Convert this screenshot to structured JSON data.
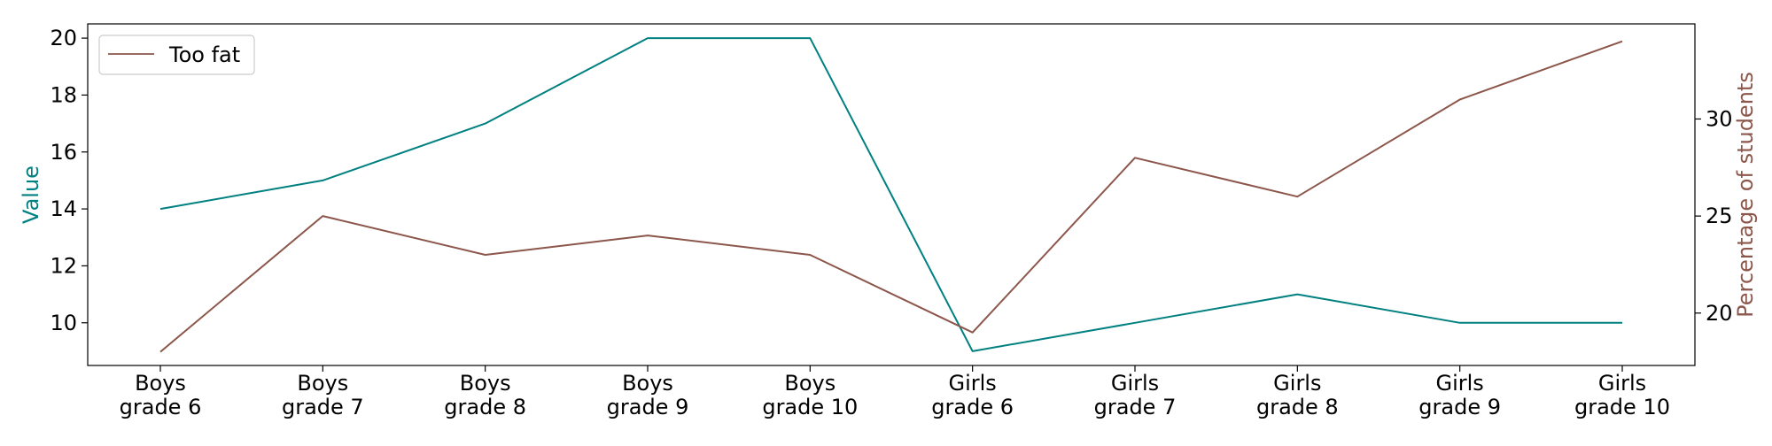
{
  "chart_data": {
    "type": "line",
    "categories": [
      [
        "Boys",
        "grade 6"
      ],
      [
        "Boys",
        "grade 7"
      ],
      [
        "Boys",
        "grade 8"
      ],
      [
        "Boys",
        "grade 9"
      ],
      [
        "Boys",
        "grade 10"
      ],
      [
        "Girls",
        "grade 6"
      ],
      [
        "Girls",
        "grade 7"
      ],
      [
        "Girls",
        "grade 8"
      ],
      [
        "Girls",
        "grade 9"
      ],
      [
        "Girls",
        "grade 10"
      ]
    ],
    "left_axis": {
      "label": "Value",
      "color": "#008080",
      "ylim": [
        8.5,
        20.5
      ],
      "ticks": [
        10,
        12,
        14,
        16,
        18,
        20
      ]
    },
    "right_axis": {
      "label": "Percentage of students",
      "color": "#8c564b",
      "ylim": [
        17.3,
        34.9
      ],
      "ticks": [
        20,
        25,
        30
      ]
    },
    "series": [
      {
        "axis": "left",
        "color": "#008080",
        "values": [
          14,
          15,
          17,
          20,
          20,
          9,
          10,
          11,
          10,
          10
        ]
      },
      {
        "name": "Too fat",
        "axis": "right",
        "color": "#8c564b",
        "values": [
          18,
          25,
          23,
          24,
          23,
          19,
          28,
          26,
          31,
          34
        ]
      }
    ],
    "legend": {
      "position": "top-left",
      "entries": [
        "Too fat"
      ]
    },
    "grid": false
  }
}
